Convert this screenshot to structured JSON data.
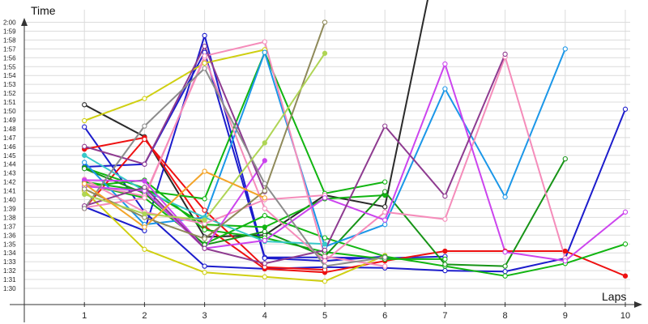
{
  "chart_data": {
    "type": "line",
    "xlabel": "Laps",
    "ylabel": "Time",
    "x": [
      1,
      2,
      3,
      4,
      5,
      6,
      7,
      8,
      9,
      10
    ],
    "xlim": [
      0,
      10
    ],
    "ylim_seconds": [
      90,
      121
    ],
    "grid": true,
    "y_ticks": [
      "1:30",
      "1:31",
      "1:32",
      "1:33",
      "1:34",
      "1:35",
      "1:36",
      "1:37",
      "1:38",
      "1:39",
      "1:40",
      "1:41",
      "1:42",
      "1:43",
      "1:44",
      "1:45",
      "1:46",
      "1:47",
      "1:48",
      "1:49",
      "1:50",
      "1:51",
      "1:52",
      "1:53",
      "1:54",
      "1:55",
      "1:56",
      "1:57",
      "1:58",
      "1:59",
      "2:00"
    ],
    "x_ticks": [
      "1",
      "2",
      "3",
      "4",
      "5",
      "6",
      "7",
      "8",
      "9",
      "10"
    ],
    "series": [
      {
        "color": "#2a2a2a",
        "values": [
          110.7,
          107.1,
          95.8,
          96.0,
          100.5,
          99.2,
          132,
          null,
          null,
          null
        ]
      },
      {
        "color": "#1c1ccc",
        "values": [
          99.2,
          96.5,
          118.5,
          93.5,
          93.5,
          93.4,
          93.6,
          null,
          null,
          null
        ]
      },
      {
        "color": "#1c1ccc",
        "values": [
          108.2,
          98.6,
          92.5,
          92.2,
          92.4,
          92.3,
          92.0,
          91.9,
          93.4,
          110.2
        ]
      },
      {
        "color": "#1c1ccc",
        "values": [
          103.7,
          104.0,
          116.6,
          93.4,
          93.1,
          93.6,
          null,
          null,
          null,
          null
        ]
      },
      {
        "color": "#ee1111",
        "values": [
          105.7,
          107.0,
          97.0,
          92.2,
          91.8,
          93.1,
          94.2,
          94.2,
          94.2,
          91.4
        ]
      },
      {
        "color": "#ee1111",
        "values": [
          99.0,
          106.8,
          98.8,
          92.4,
          92.1,
          null,
          null,
          null,
          null,
          null
        ]
      },
      {
        "color": "#cfcf11",
        "values": [
          108.9,
          111.4,
          115.4,
          116.9,
          null,
          null,
          null,
          null,
          null,
          null
        ]
      },
      {
        "color": "#cfcf11",
        "values": [
          101.0,
          94.4,
          91.8,
          91.3,
          90.8,
          93.7,
          null,
          null,
          null,
          null
        ]
      },
      {
        "color": "#11b511",
        "values": [
          102.0,
          101.0,
          100.1,
          116.6,
          100.7,
          102.0,
          null,
          null,
          null,
          null
        ]
      },
      {
        "color": "#11b511",
        "values": [
          103.6,
          101.3,
          97.2,
          96.9,
          100.1,
          100.5,
          null,
          null,
          null,
          null
        ]
      },
      {
        "color": "#11b511",
        "values": [
          101.5,
          102.2,
          96.6,
          95.7,
          94.1,
          93.3,
          93.3,
          null,
          null,
          null
        ]
      },
      {
        "color": "#11b511",
        "values": [
          101.8,
          100.2,
          95.0,
          98.2,
          95.7,
          93.6,
          92.5,
          91.4,
          92.8,
          95.0
        ]
      },
      {
        "color": "#179417",
        "values": [
          103.5,
          100.7,
          94.9,
          96.4,
          93.6,
          100.9,
          92.7,
          92.5,
          104.6,
          null
        ]
      },
      {
        "color": "#1b97e8",
        "values": [
          104.2,
          97.2,
          98.0,
          116.6,
          94.7,
          97.2,
          112.5,
          100.3,
          117.0,
          null
        ]
      },
      {
        "color": "#38c8c8",
        "values": [
          105.0,
          101.0,
          98.0,
          95.3,
          95.0,
          null,
          null,
          null,
          null,
          null
        ]
      },
      {
        "color": "#f58cba",
        "values": [
          101.8,
          100.4,
          116.0,
          99.0,
          93.1,
          98.6,
          97.8,
          116.1,
          93.4,
          null
        ]
      },
      {
        "color": "#f58cba",
        "values": [
          99.1,
          100.2,
          116.2,
          117.8,
          93.6,
          92.5,
          null,
          null,
          null,
          null
        ]
      },
      {
        "color": "#f58cba",
        "values": [
          102.3,
          98.6,
          97.3,
          100.0,
          100.5,
          null,
          null,
          null,
          null,
          null
        ]
      },
      {
        "color": "#cc44ee",
        "values": [
          101.5,
          101.0,
          94.5,
          95.4,
          100.2,
          97.7,
          115.3,
          94.1,
          93.1,
          98.6
        ]
      },
      {
        "color": "#cc44ee",
        "values": [
          102.2,
          102.1,
          94.5,
          104.4,
          null,
          null,
          null,
          null,
          null,
          null
        ]
      },
      {
        "color": "#8e3b90",
        "values": [
          106.0,
          104.0,
          117.3,
          100.9,
          null,
          null,
          null,
          null,
          null,
          null
        ]
      },
      {
        "color": "#8e3b90",
        "values": [
          99.3,
          101.4,
          94.5,
          92.8,
          94.3,
          108.3,
          100.4,
          116.4,
          null,
          null
        ]
      },
      {
        "color": "#8c8c8c",
        "values": [
          99.0,
          108.3,
          114.8,
          101.8,
          92.5,
          93.5,
          null,
          null,
          null,
          null
        ]
      },
      {
        "color": "#8f8a5a",
        "values": [
          101.2,
          98.0,
          95.6,
          101.0,
          120.0,
          null,
          null,
          null,
          null,
          null
        ]
      },
      {
        "color": "#afd555",
        "values": [
          100.6,
          98.4,
          97.7,
          106.4,
          116.5,
          null,
          null,
          null,
          null,
          null
        ]
      },
      {
        "color": "#f3a42a",
        "values": [
          101.8,
          96.9,
          103.2,
          100.2,
          null,
          null,
          null,
          null,
          null,
          null
        ]
      }
    ]
  }
}
